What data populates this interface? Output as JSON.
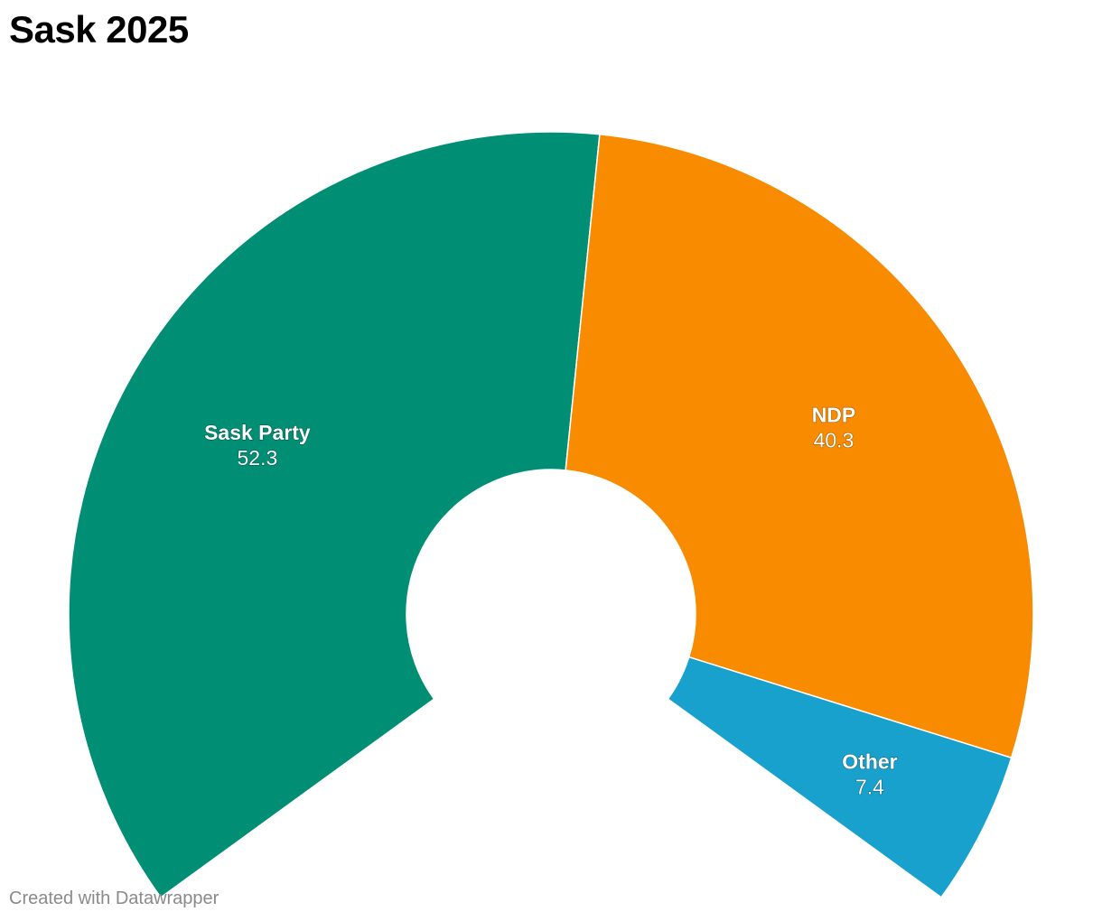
{
  "title": "Sask 2025",
  "credit": "Created with Datawrapper",
  "chart_data": {
    "type": "pie",
    "variant": "semi-donut (arc)",
    "title": "Sask 2025",
    "categories": [
      "Sask Party",
      "NDP",
      "Other"
    ],
    "values": [
      52.3,
      40.3,
      7.4
    ],
    "colors": [
      "#008f74",
      "#f88b00",
      "#18a1cd"
    ],
    "total": 100
  }
}
